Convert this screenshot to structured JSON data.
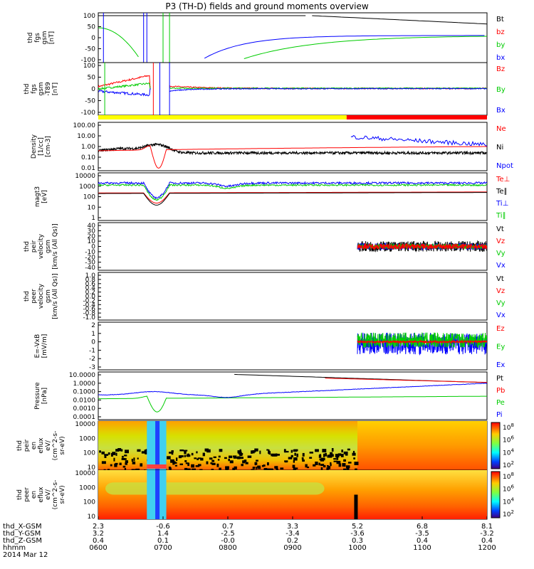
{
  "title": "P3 (TH-D) fields and ground moments overview",
  "colors": {
    "black": "#000000",
    "red": "#ff0000",
    "green": "#00cc00",
    "blue": "#0000ff",
    "yellow": "#ffff00"
  },
  "chart_data": [
    {
      "type": "line",
      "panel": "fgs",
      "ylabel": [
        "thd",
        "fgs",
        "gsm",
        "[nT]"
      ],
      "yticks": [
        "100",
        "50",
        "0",
        "-50",
        "-100"
      ],
      "ylim": [
        -100,
        100
      ],
      "legend": [
        {
          "name": "Bt",
          "color": "#000000"
        },
        {
          "name": "bz",
          "color": "#ff0000"
        },
        {
          "name": "by",
          "color": "#00cc00"
        },
        {
          "name": "bx",
          "color": "#0000ff"
        }
      ]
    },
    {
      "type": "line",
      "panel": "fgs-t89",
      "ylabel": [
        "thd",
        "fgs",
        "gsm",
        "-T89",
        "[nT]"
      ],
      "yticks": [
        "100",
        "50",
        "0",
        "-50",
        "-100"
      ],
      "ylim": [
        -120,
        120
      ],
      "legend": [
        {
          "name": "Bz",
          "color": "#ff0000"
        },
        {
          "name": "By",
          "color": "#00cc00"
        },
        {
          "name": "Bx",
          "color": "#0000ff"
        }
      ]
    },
    {
      "type": "bar",
      "panel": "mode-bar",
      "segments": [
        {
          "from": "0600",
          "to": "0950",
          "color": "#ffff00"
        },
        {
          "from": "0950",
          "to": "1200",
          "color": "#ff0000"
        }
      ]
    },
    {
      "type": "line",
      "panel": "density",
      "ylabel": [
        "Density",
        "[1/cc]",
        "[cm-3]"
      ],
      "yticks": [
        "100.00",
        "10.00",
        "1.00",
        "0.10",
        "0.01"
      ],
      "scale": "log",
      "legend": [
        {
          "name": "Ne",
          "color": "#ff0000"
        },
        {
          "name": "Ni",
          "color": "#000000"
        },
        {
          "name": "Npot",
          "color": "#0000ff"
        }
      ]
    },
    {
      "type": "line",
      "panel": "temperature",
      "ylabel": [
        "magt3",
        "[eV]"
      ],
      "yticks": [
        "10000",
        "1000",
        "100",
        "10",
        "1"
      ],
      "scale": "log",
      "legend": [
        {
          "name": "Te⊥",
          "color": "#ff0000"
        },
        {
          "name": "Te∥",
          "color": "#000000"
        },
        {
          "name": "Ti⊥",
          "color": "#0000ff"
        },
        {
          "name": "Ti∥",
          "color": "#00cc00"
        }
      ]
    },
    {
      "type": "line",
      "panel": "peir-velocity",
      "ylabel": [
        "thd",
        "peir",
        "velocity",
        "gsm",
        "[km/s (All Qs)]"
      ],
      "yticks": [
        "40",
        "30",
        "20",
        "10",
        "0",
        "-10",
        "-20",
        "-30",
        "-40"
      ],
      "ylim": [
        -40,
        40
      ],
      "legend": [
        {
          "name": "Vt",
          "color": "#000000"
        },
        {
          "name": "Vz",
          "color": "#ff0000"
        },
        {
          "name": "Vy",
          "color": "#00cc00"
        },
        {
          "name": "Vx",
          "color": "#0000ff"
        }
      ]
    },
    {
      "type": "line",
      "panel": "peer-velocity",
      "ylabel": [
        "thd",
        "peer",
        "velocity",
        "gsm",
        "[km/s (All Qs)]"
      ],
      "yticks": [
        "1.0",
        "0.8",
        "0.6",
        "0.4",
        "0.2",
        "0.0",
        "-0.2",
        "-0.4",
        "-0.6",
        "-0.8",
        "-1.0"
      ],
      "ylim": [
        -1,
        1
      ],
      "legend": [
        {
          "name": "Vt",
          "color": "#000000"
        },
        {
          "name": "Vz",
          "color": "#ff0000"
        },
        {
          "name": "Vy",
          "color": "#00cc00"
        },
        {
          "name": "Vx",
          "color": "#0000ff"
        }
      ]
    },
    {
      "type": "line",
      "panel": "efield",
      "ylabel": [
        "E=-VxB",
        "[mV/m]"
      ],
      "yticks": [
        "2",
        "1",
        "0",
        "-1",
        "-2",
        "-3"
      ],
      "ylim": [
        -3,
        2
      ],
      "legend": [
        {
          "name": "Ez",
          "color": "#ff0000"
        },
        {
          "name": "Ey",
          "color": "#00cc00"
        },
        {
          "name": "Ex",
          "color": "#0000ff"
        }
      ]
    },
    {
      "type": "line",
      "panel": "pressure",
      "ylabel": [
        "Pressure",
        "[nPa]"
      ],
      "yticks": [
        "10.0000",
        "1.0000",
        "0.1000",
        "0.0100",
        "0.0010",
        "0.0001"
      ],
      "scale": "log",
      "legend": [
        {
          "name": "Pt",
          "color": "#000000"
        },
        {
          "name": "Pb",
          "color": "#ff0000"
        },
        {
          "name": "Pe",
          "color": "#00cc00"
        },
        {
          "name": "Pi",
          "color": "#0000ff"
        }
      ]
    },
    {
      "type": "heatmap",
      "panel": "peir-eflux",
      "ylabel": [
        "thd",
        "peir",
        "en",
        "eflux",
        "eV/",
        "(cm^2-s-",
        "sr-eV)"
      ],
      "yticks": [
        "10000",
        "1000",
        "100",
        "10"
      ],
      "scale": "log",
      "colorbar": [
        "10^8",
        "10^6",
        "10^4",
        "10^2"
      ]
    },
    {
      "type": "heatmap",
      "panel": "peer-eflux",
      "ylabel": [
        "thd",
        "peer",
        "en",
        "eflux",
        "eV/",
        "(cm^2-s-",
        "sr-eV)"
      ],
      "yticks": [
        "10000",
        "1000",
        "100",
        "10"
      ],
      "scale": "log",
      "colorbar": [
        "10^8",
        "10^6",
        "10^4",
        "10^2"
      ]
    }
  ],
  "xaxis": {
    "rows": [
      {
        "label": "thd_X-GSM",
        "values": [
          "2.3",
          "-0.6",
          "0.7",
          "3.3",
          "5.2",
          "6.8",
          "8.1"
        ]
      },
      {
        "label": "thd_Y-GSM",
        "values": [
          "3.2",
          "1.4",
          "-2.5",
          "-3.4",
          "-3.6",
          "-3.5",
          "-3.2"
        ]
      },
      {
        "label": "thd_Z-GSM",
        "values": [
          "0.4",
          "0.1",
          "-0.0",
          "0.2",
          "0.3",
          "0.4",
          "0.4"
        ]
      },
      {
        "label": "hhmm",
        "values": [
          "0600",
          "0700",
          "0800",
          "0900",
          "1000",
          "1100",
          "1200"
        ]
      }
    ],
    "date": "2014 Mar 12"
  }
}
